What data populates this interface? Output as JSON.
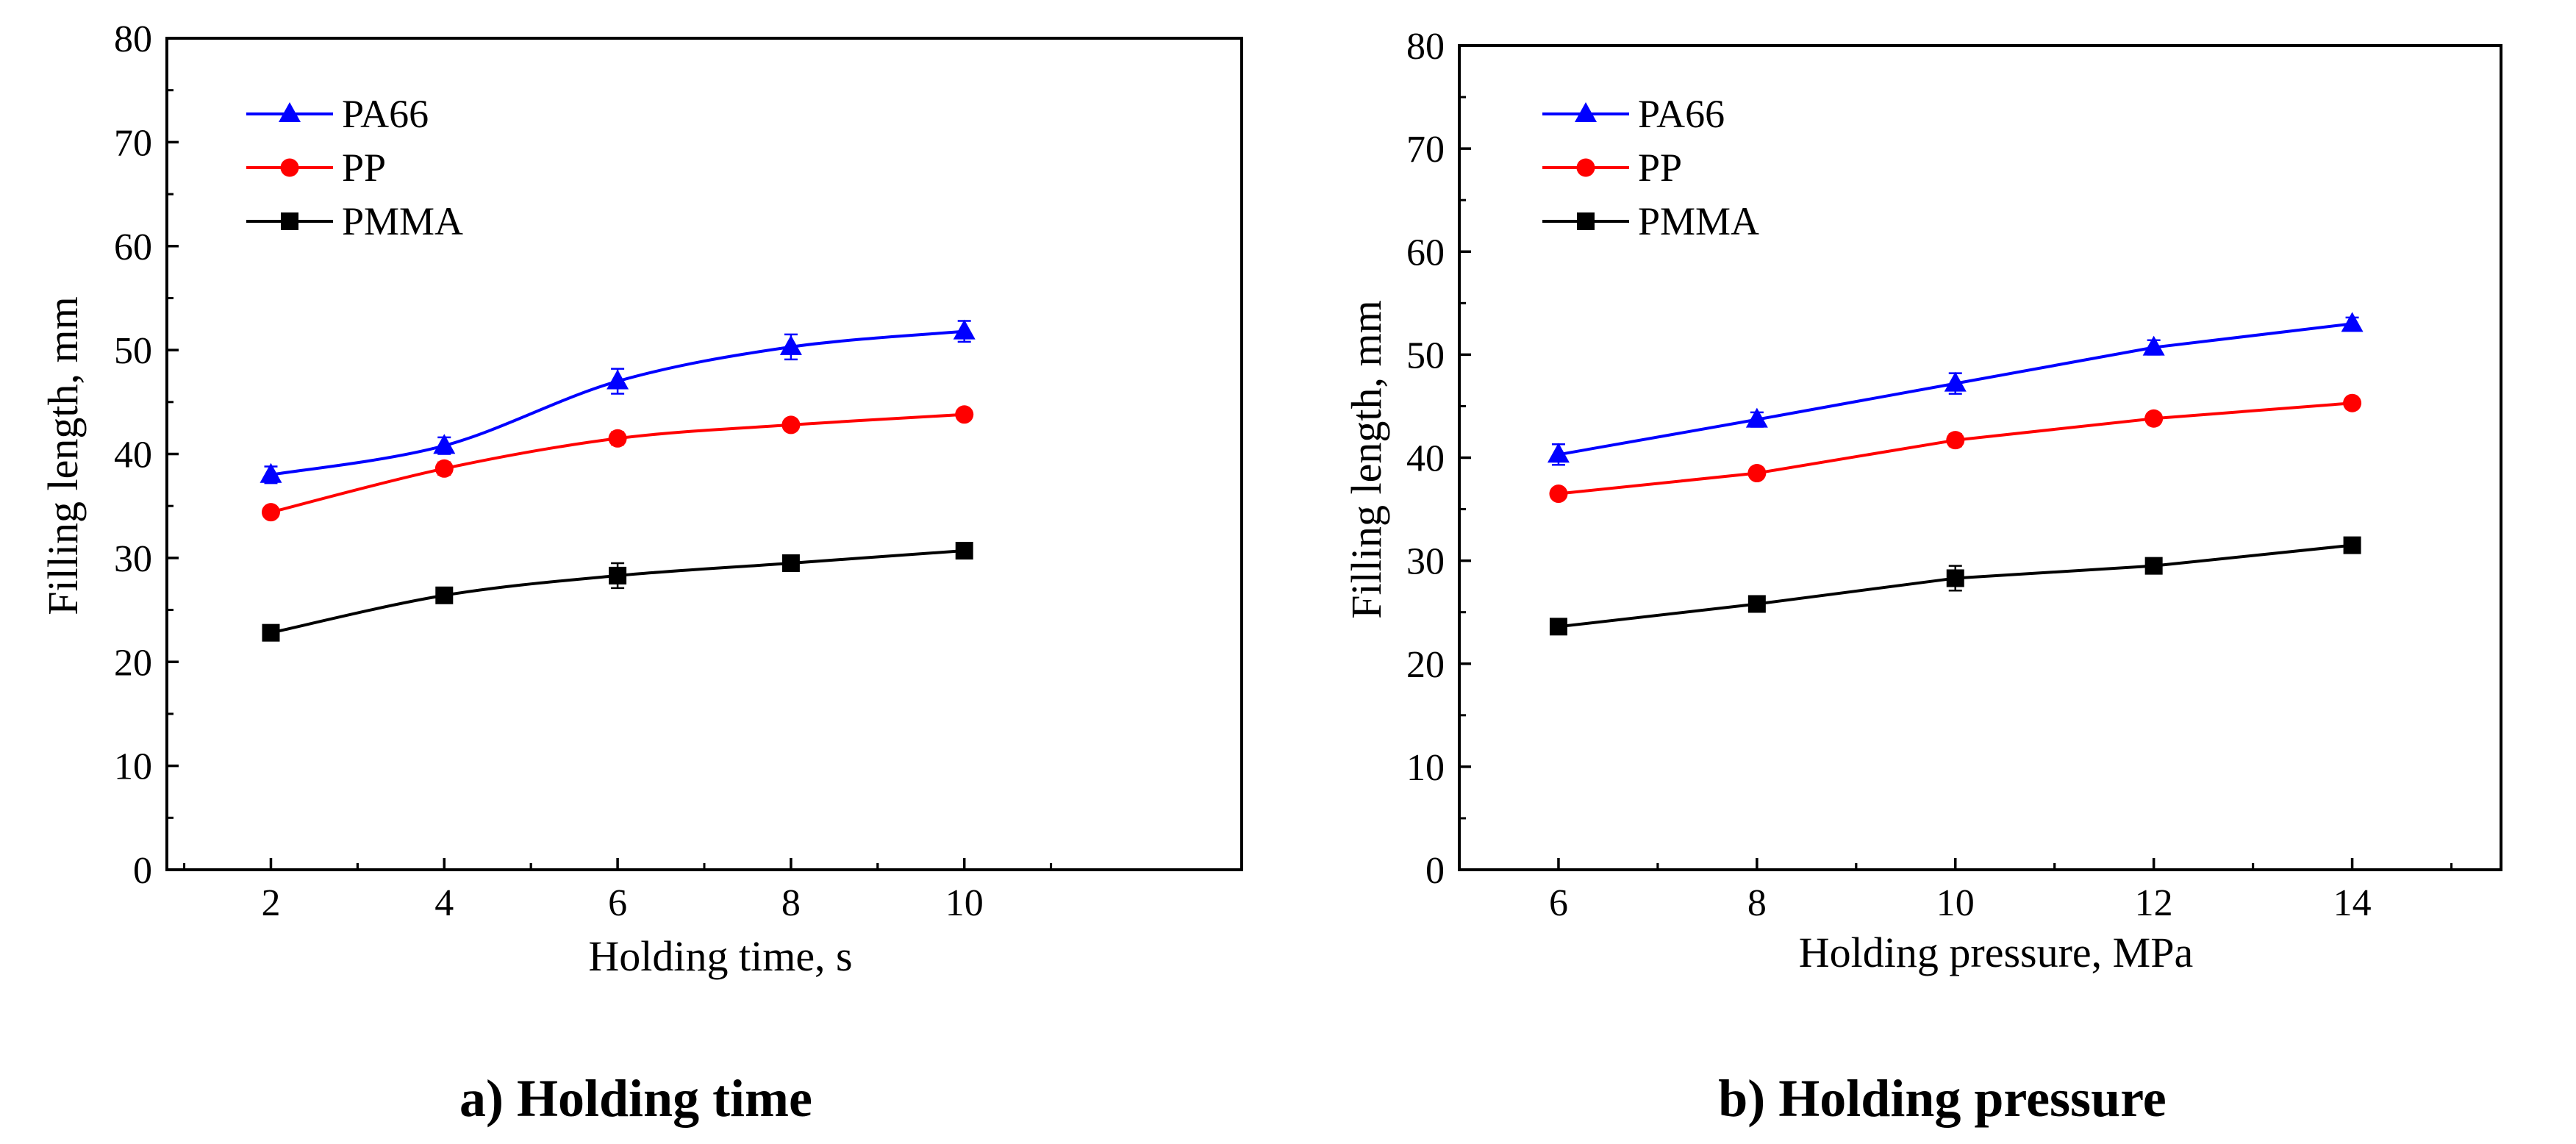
{
  "chart_data": [
    {
      "type": "line",
      "caption": "a) Holding time",
      "xlabel": "Holding time, s",
      "ylabel": "Filling length, mm",
      "x": [
        2,
        4,
        6,
        8,
        10
      ],
      "xlim": [
        0.8,
        13.2
      ],
      "ylim": [
        0,
        80
      ],
      "xticks": [
        "2",
        "4",
        "6",
        "8",
        "10"
      ],
      "yticks": [
        "0",
        "10",
        "20",
        "30",
        "40",
        "50",
        "60",
        "70",
        "80"
      ],
      "legend_position": "top-left",
      "series": [
        {
          "name": "PA66",
          "color": "#0000ff",
          "marker": "triangle",
          "values": [
            38.0,
            40.8,
            47.0,
            50.3,
            51.8
          ],
          "errors": [
            0.8,
            0.8,
            1.2,
            1.2,
            1.0
          ]
        },
        {
          "name": "PP",
          "color": "#ff0000",
          "marker": "circle",
          "values": [
            34.4,
            38.6,
            41.5,
            42.8,
            43.8
          ],
          "errors": [
            0.5,
            0.6,
            0.6,
            0.5,
            0.5
          ]
        },
        {
          "name": "PMMA",
          "color": "#000000",
          "marker": "square",
          "values": [
            22.8,
            26.4,
            28.3,
            29.5,
            30.7
          ],
          "errors": [
            0.5,
            0.6,
            1.2,
            0.6,
            0.6
          ]
        }
      ]
    },
    {
      "type": "line",
      "caption": "b) Holding pressure",
      "xlabel": "Holding pressure, MPa",
      "ylabel": "Filling length, mm",
      "x": [
        6,
        8,
        10,
        12,
        14
      ],
      "xlim": [
        5.0,
        15.5
      ],
      "ylim": [
        0,
        80
      ],
      "xticks": [
        "6",
        "8",
        "10",
        "12",
        "14"
      ],
      "yticks": [
        "0",
        "10",
        "20",
        "30",
        "40",
        "50",
        "60",
        "70",
        "80"
      ],
      "legend_position": "top-left",
      "series": [
        {
          "name": "PA66",
          "color": "#0000ff",
          "marker": "triangle",
          "values": [
            40.3,
            43.7,
            47.2,
            50.7,
            53.0
          ],
          "errors": [
            1.0,
            0.7,
            1.0,
            0.7,
            0.6
          ]
        },
        {
          "name": "PP",
          "color": "#ff0000",
          "marker": "circle",
          "values": [
            36.5,
            38.5,
            41.7,
            43.8,
            45.3
          ],
          "errors": [
            0.5,
            0.5,
            0.6,
            0.5,
            0.5
          ]
        },
        {
          "name": "PMMA",
          "color": "#000000",
          "marker": "square",
          "values": [
            23.6,
            25.8,
            28.3,
            29.5,
            31.5
          ],
          "errors": [
            0.5,
            0.5,
            1.2,
            0.5,
            0.5
          ]
        }
      ]
    }
  ]
}
